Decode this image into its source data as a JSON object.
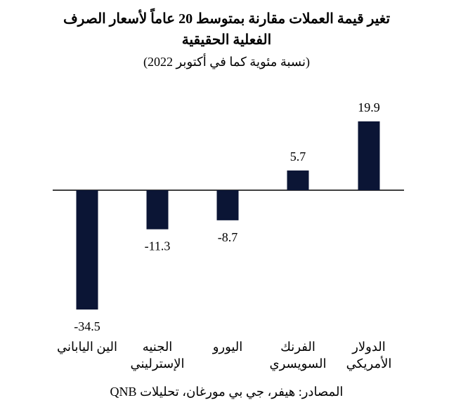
{
  "title_line1": "تغير قيمة العملات مقارنة بمتوسط 20 عاماً لأسعار الصرف",
  "title_line2": "الفعلية الحقيقية",
  "subtitle": "(نسبة مئوية كما في أكتوبر 2022)",
  "source": "المصادر: هيفر، جي بي مورغان، تحليلات QNB",
  "chart_data": {
    "type": "bar",
    "categories": [
      [
        "الين الياباني"
      ],
      [
        "الجنيه",
        "الإسترليني"
      ],
      [
        "اليورو"
      ],
      [
        "الفرنك",
        "السويسري"
      ],
      [
        "الدولار",
        "الأمريكي"
      ]
    ],
    "values": [
      -34.5,
      -11.3,
      -8.7,
      5.7,
      19.9
    ],
    "data_labels": [
      "-34.5",
      "-11.3",
      "-8.7",
      "5.7",
      "19.9"
    ],
    "bar_color": "#0b1535",
    "grid": false,
    "legend": "none"
  }
}
